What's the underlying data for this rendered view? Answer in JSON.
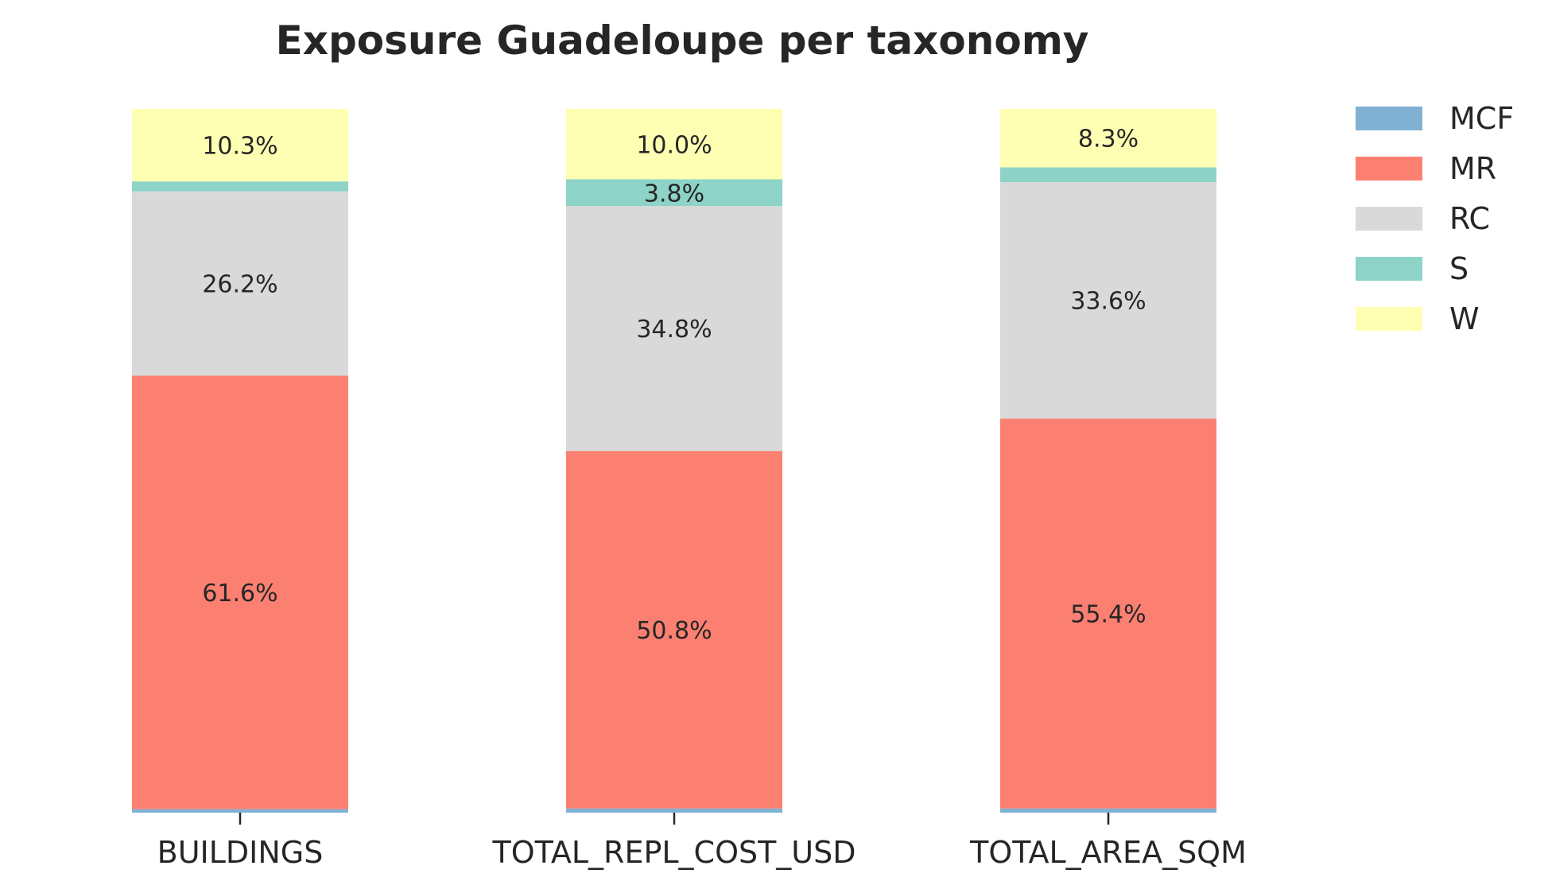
{
  "chart_data": {
    "type": "bar",
    "stacked": true,
    "normalized": true,
    "title": "Exposure Guadeloupe per taxonomy",
    "xlabel": "",
    "ylabel": "",
    "ylim": [
      0,
      100
    ],
    "grid": false,
    "legend_position": "right",
    "categories": [
      "BUILDINGS",
      "TOTAL_REPL_COST_USD",
      "TOTAL_AREA_SQM"
    ],
    "series": [
      {
        "name": "MCF",
        "color": "#80b1d3",
        "values": [
          0.5,
          0.6,
          0.6
        ],
        "labels": [
          "",
          "",
          ""
        ]
      },
      {
        "name": "MR",
        "color": "#fb8072",
        "values": [
          61.6,
          50.8,
          55.4
        ],
        "labels": [
          "61.6%",
          "50.8%",
          "55.4%"
        ]
      },
      {
        "name": "RC",
        "color": "#d9d9d9",
        "values": [
          26.2,
          34.8,
          33.6
        ],
        "labels": [
          "26.2%",
          "34.8%",
          "33.6%"
        ]
      },
      {
        "name": "S",
        "color": "#8dd3c7",
        "values": [
          1.4,
          3.8,
          2.1
        ],
        "labels": [
          "",
          "3.8%",
          ""
        ]
      },
      {
        "name": "W",
        "color": "#ffffb3",
        "values": [
          10.3,
          10.0,
          8.3
        ],
        "labels": [
          "10.3%",
          "10.0%",
          "8.3%"
        ]
      }
    ]
  }
}
